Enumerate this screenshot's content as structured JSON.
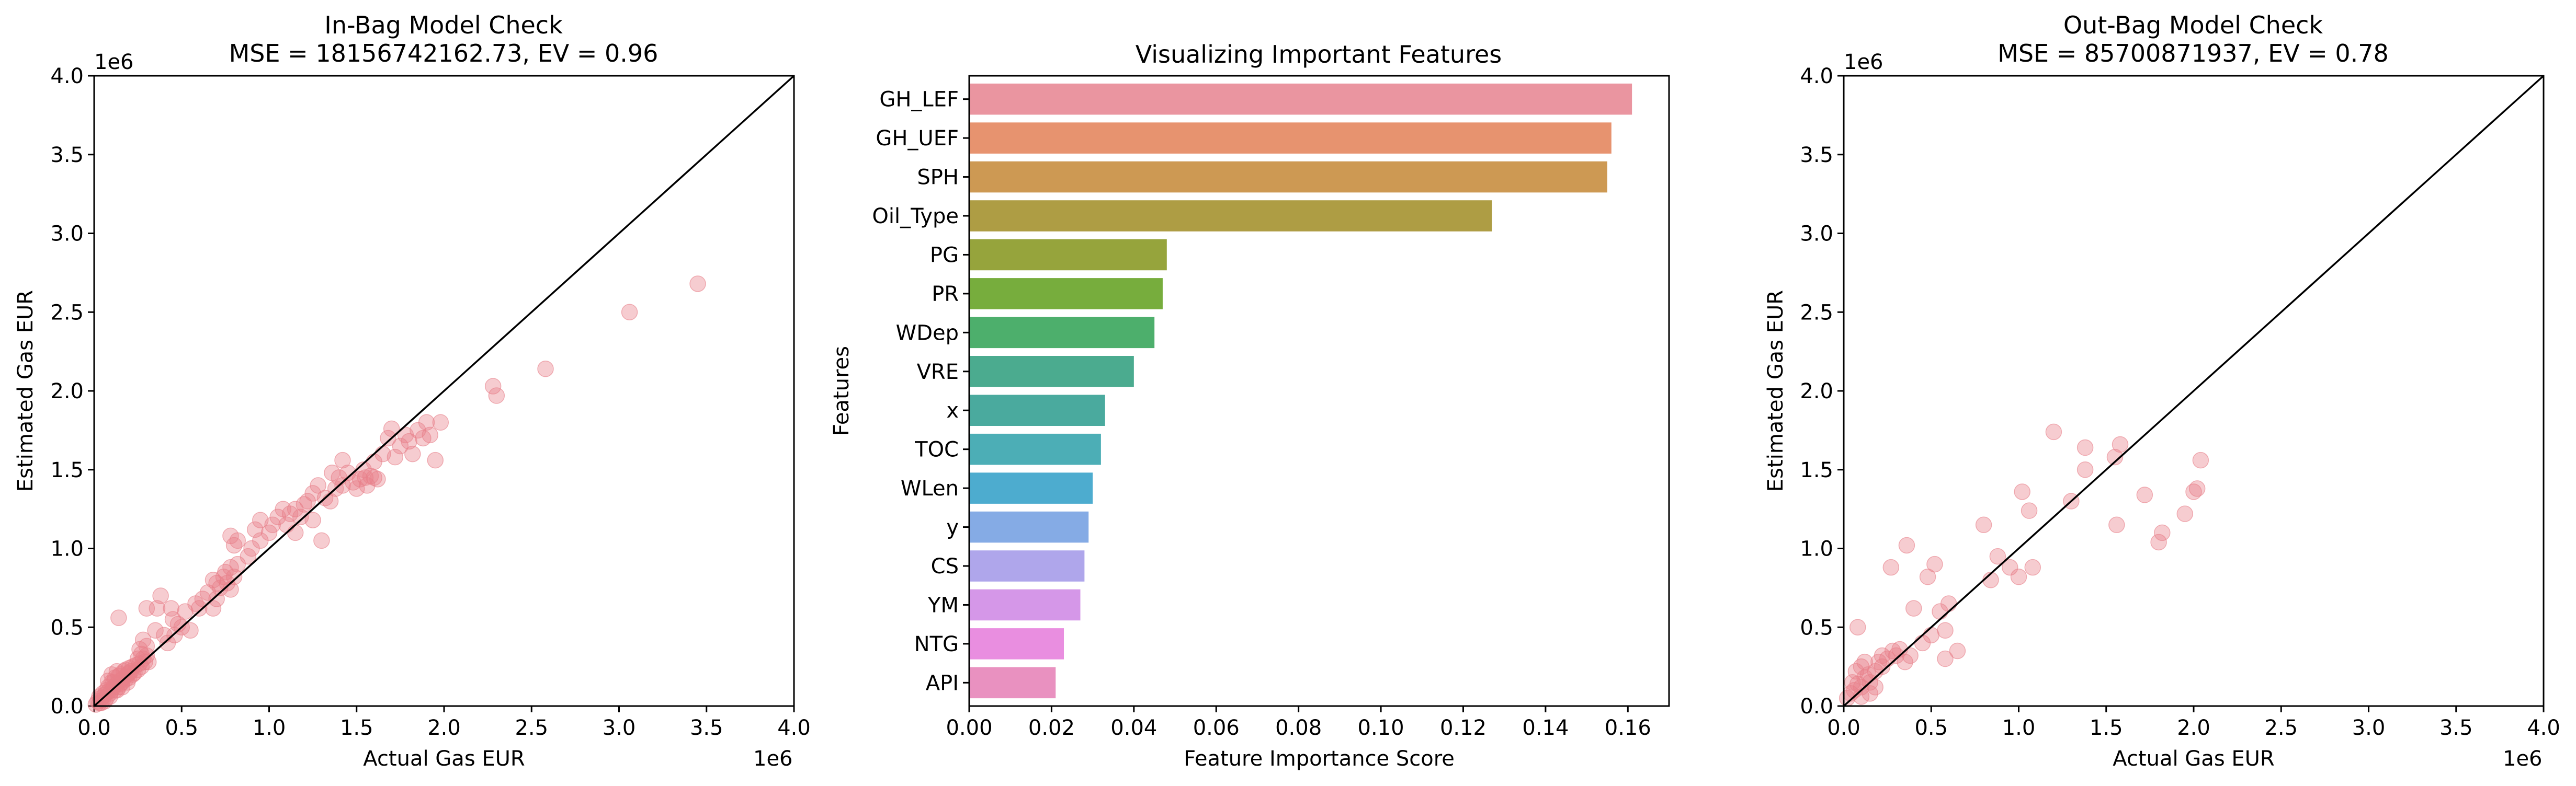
{
  "chart_data": [
    {
      "type": "scatter",
      "title_line1": "In-Bag Model Check",
      "title_line2": "MSE = 18156742162.73, EV = 0.96",
      "xlabel": "Actual Gas EUR",
      "ylabel": "Estimated Gas EUR",
      "x_offset_label": "1e6",
      "y_offset_label": "1e6",
      "xlim": [
        0,
        4.0
      ],
      "ylim": [
        0,
        4.0
      ],
      "x_ticks": [
        "0.0",
        "0.5",
        "1.0",
        "1.5",
        "2.0",
        "2.5",
        "3.0",
        "3.5",
        "4.0"
      ],
      "y_ticks": [
        "0.0",
        "0.5",
        "1.0",
        "1.5",
        "2.0",
        "2.5",
        "3.0",
        "3.5",
        "4.0"
      ],
      "reference_line": "y = x",
      "point_color": "#e8808a",
      "points": [
        [
          0.01,
          0.01
        ],
        [
          0.02,
          0.03
        ],
        [
          0.03,
          0.02
        ],
        [
          0.04,
          0.05
        ],
        [
          0.05,
          0.04
        ],
        [
          0.06,
          0.07
        ],
        [
          0.07,
          0.05
        ],
        [
          0.08,
          0.09
        ],
        [
          0.09,
          0.08
        ],
        [
          0.1,
          0.1
        ],
        [
          0.11,
          0.12
        ],
        [
          0.12,
          0.1
        ],
        [
          0.13,
          0.14
        ],
        [
          0.14,
          0.12
        ],
        [
          0.15,
          0.16
        ],
        [
          0.16,
          0.15
        ],
        [
          0.17,
          0.18
        ],
        [
          0.18,
          0.17
        ],
        [
          0.19,
          0.2
        ],
        [
          0.2,
          0.18
        ],
        [
          0.21,
          0.22
        ],
        [
          0.22,
          0.2
        ],
        [
          0.05,
          0.08
        ],
        [
          0.08,
          0.12
        ],
        [
          0.1,
          0.15
        ],
        [
          0.12,
          0.18
        ],
        [
          0.15,
          0.2
        ],
        [
          0.18,
          0.23
        ],
        [
          0.2,
          0.24
        ],
        [
          0.04,
          0.02
        ],
        [
          0.06,
          0.03
        ],
        [
          0.09,
          0.06
        ],
        [
          0.13,
          0.1
        ],
        [
          0.16,
          0.12
        ],
        [
          0.19,
          0.15
        ],
        [
          0.03,
          0.06
        ],
        [
          0.07,
          0.1
        ],
        [
          0.11,
          0.15
        ],
        [
          0.14,
          0.19
        ],
        [
          0.17,
          0.22
        ],
        [
          0.25,
          0.23
        ],
        [
          0.26,
          0.27
        ],
        [
          0.27,
          0.25
        ],
        [
          0.28,
          0.3
        ],
        [
          0.29,
          0.28
        ],
        [
          0.3,
          0.32
        ],
        [
          0.25,
          0.3
        ],
        [
          0.27,
          0.33
        ],
        [
          0.3,
          0.38
        ],
        [
          0.28,
          0.42
        ],
        [
          0.26,
          0.36
        ],
        [
          0.31,
          0.28
        ],
        [
          0.24,
          0.26
        ],
        [
          0.23,
          0.21
        ],
        [
          0.22,
          0.25
        ],
        [
          0.1,
          0.2
        ],
        [
          0.13,
          0.22
        ],
        [
          0.08,
          0.16
        ],
        [
          0.15,
          0.14
        ],
        [
          0.2,
          0.21
        ],
        [
          0.14,
          0.56
        ],
        [
          0.3,
          0.62
        ],
        [
          0.38,
          0.7
        ],
        [
          0.36,
          0.62
        ],
        [
          0.4,
          0.45
        ],
        [
          0.35,
          0.48
        ],
        [
          0.42,
          0.4
        ],
        [
          0.45,
          0.55
        ],
        [
          0.48,
          0.52
        ],
        [
          0.46,
          0.45
        ],
        [
          0.5,
          0.5
        ],
        [
          0.52,
          0.6
        ],
        [
          0.55,
          0.48
        ],
        [
          0.58,
          0.65
        ],
        [
          0.6,
          0.62
        ],
        [
          0.62,
          0.68
        ],
        [
          0.65,
          0.72
        ],
        [
          0.68,
          0.8
        ],
        [
          0.7,
          0.78
        ],
        [
          0.72,
          0.75
        ],
        [
          0.75,
          0.85
        ],
        [
          0.78,
          0.88
        ],
        [
          0.8,
          0.82
        ],
        [
          0.82,
          0.9
        ],
        [
          0.68,
          0.62
        ],
        [
          0.7,
          0.68
        ],
        [
          0.74,
          0.82
        ],
        [
          0.76,
          0.78
        ],
        [
          0.78,
          0.74
        ],
        [
          0.44,
          0.62
        ],
        [
          0.8,
          1.02
        ],
        [
          0.82,
          1.05
        ],
        [
          0.78,
          1.08
        ],
        [
          0.9,
          1.0
        ],
        [
          0.92,
          1.12
        ],
        [
          0.95,
          1.18
        ],
        [
          1.0,
          1.1
        ],
        [
          1.02,
          1.15
        ],
        [
          1.05,
          1.2
        ],
        [
          1.1,
          1.15
        ],
        [
          1.12,
          1.22
        ],
        [
          1.15,
          1.25
        ],
        [
          1.18,
          1.2
        ],
        [
          1.2,
          1.28
        ],
        [
          1.22,
          1.3
        ],
        [
          1.25,
          1.35
        ],
        [
          1.28,
          1.4
        ],
        [
          1.3,
          1.05
        ],
        [
          1.32,
          1.32
        ],
        [
          1.35,
          1.3
        ],
        [
          1.38,
          1.38
        ],
        [
          1.4,
          1.45
        ],
        [
          1.42,
          1.4
        ],
        [
          1.45,
          1.48
        ],
        [
          1.48,
          1.42
        ],
        [
          1.5,
          1.38
        ],
        [
          1.52,
          1.44
        ],
        [
          1.55,
          1.45
        ],
        [
          1.58,
          1.46
        ],
        [
          1.6,
          1.45
        ],
        [
          1.62,
          1.44
        ],
        [
          1.56,
          1.4
        ],
        [
          1.54,
          1.5
        ],
        [
          1.6,
          1.55
        ],
        [
          1.65,
          1.6
        ],
        [
          1.68,
          1.7
        ],
        [
          1.7,
          1.76
        ],
        [
          1.72,
          1.58
        ],
        [
          1.75,
          1.65
        ],
        [
          1.78,
          1.72
        ],
        [
          1.8,
          1.68
        ],
        [
          1.82,
          1.6
        ],
        [
          1.85,
          1.75
        ],
        [
          1.88,
          1.7
        ],
        [
          1.9,
          1.8
        ],
        [
          1.92,
          1.72
        ],
        [
          1.95,
          1.56
        ],
        [
          1.98,
          1.8
        ],
        [
          1.42,
          1.56
        ],
        [
          1.36,
          1.48
        ],
        [
          2.28,
          2.03
        ],
        [
          2.3,
          1.97
        ],
        [
          2.58,
          2.14
        ],
        [
          3.06,
          2.5
        ],
        [
          3.45,
          2.68
        ],
        [
          1.25,
          1.18
        ],
        [
          1.08,
          1.25
        ],
        [
          1.15,
          1.1
        ],
        [
          0.95,
          1.05
        ],
        [
          0.88,
          0.95
        ]
      ]
    },
    {
      "type": "bar",
      "orientation": "horizontal",
      "title": "Visualizing Important Features",
      "xlabel": "Feature Importance Score",
      "ylabel": "Features",
      "xlim": [
        0,
        0.17
      ],
      "x_ticks": [
        "0.00",
        "0.02",
        "0.04",
        "0.06",
        "0.08",
        "0.10",
        "0.12",
        "0.14",
        "0.16"
      ],
      "categories": [
        "GH_LEF",
        "GH_UEF",
        "SPH",
        "Oil_Type",
        "PG",
        "PR",
        "WDep",
        "VRE",
        "x",
        "TOC",
        "WLen",
        "y",
        "CS",
        "YM",
        "NTG",
        "API"
      ],
      "values": [
        0.161,
        0.156,
        0.155,
        0.127,
        0.048,
        0.047,
        0.045,
        0.04,
        0.033,
        0.032,
        0.03,
        0.029,
        0.028,
        0.027,
        0.023,
        0.021
      ],
      "colors": [
        "#ea95a0",
        "#e7936f",
        "#cd9953",
        "#ae9d44",
        "#96a43c",
        "#77ad3d",
        "#4daf6c",
        "#4bab8f",
        "#4aaa9e",
        "#4caeb6",
        "#4daccf",
        "#85abe5",
        "#afa6eb",
        "#d597e8",
        "#e98ee0",
        "#e991c0"
      ]
    },
    {
      "type": "scatter",
      "title_line1": "Out-Bag Model Check",
      "title_line2": "MSE = 85700871937, EV = 0.78",
      "xlabel": "Actual Gas EUR",
      "ylabel": "Estimated Gas EUR",
      "x_offset_label": "1e6",
      "y_offset_label": "1e6",
      "xlim": [
        0,
        4.0
      ],
      "ylim": [
        0,
        4.0
      ],
      "x_ticks": [
        "0.0",
        "0.5",
        "1.0",
        "1.5",
        "2.0",
        "2.5",
        "3.0",
        "3.5",
        "4.0"
      ],
      "y_ticks": [
        "0.0",
        "0.5",
        "1.0",
        "1.5",
        "2.0",
        "2.5",
        "3.0",
        "3.5",
        "4.0"
      ],
      "reference_line": "y = x",
      "point_color": "#e8808a",
      "points": [
        [
          0.02,
          0.05
        ],
        [
          0.04,
          0.08
        ],
        [
          0.06,
          0.1
        ],
        [
          0.08,
          0.14
        ],
        [
          0.1,
          0.12
        ],
        [
          0.12,
          0.18
        ],
        [
          0.14,
          0.2
        ],
        [
          0.07,
          0.22
        ],
        [
          0.1,
          0.25
        ],
        [
          0.15,
          0.15
        ],
        [
          0.18,
          0.22
        ],
        [
          0.2,
          0.28
        ],
        [
          0.22,
          0.25
        ],
        [
          0.25,
          0.3
        ],
        [
          0.28,
          0.35
        ],
        [
          0.3,
          0.32
        ],
        [
          0.32,
          0.36
        ],
        [
          0.35,
          0.28
        ],
        [
          0.38,
          0.32
        ],
        [
          0.12,
          0.28
        ],
        [
          0.08,
          0.5
        ],
        [
          0.27,
          0.88
        ],
        [
          0.36,
          1.02
        ],
        [
          0.48,
          0.82
        ],
        [
          0.52,
          0.9
        ],
        [
          0.5,
          0.45
        ],
        [
          0.58,
          0.48
        ],
        [
          0.55,
          0.6
        ],
        [
          0.6,
          0.65
        ],
        [
          0.58,
          0.3
        ],
        [
          0.65,
          0.35
        ],
        [
          0.8,
          1.15
        ],
        [
          0.84,
          0.8
        ],
        [
          0.88,
          0.95
        ],
        [
          0.95,
          0.88
        ],
        [
          1.0,
          0.82
        ],
        [
          1.02,
          1.36
        ],
        [
          1.06,
          1.24
        ],
        [
          1.08,
          0.88
        ],
        [
          1.2,
          1.74
        ],
        [
          1.3,
          1.3
        ],
        [
          1.38,
          1.5
        ],
        [
          1.38,
          1.64
        ],
        [
          1.55,
          1.58
        ],
        [
          1.58,
          1.66
        ],
        [
          1.56,
          1.15
        ],
        [
          1.72,
          1.34
        ],
        [
          1.8,
          1.04
        ],
        [
          1.82,
          1.1
        ],
        [
          1.95,
          1.22
        ],
        [
          2.0,
          1.36
        ],
        [
          2.02,
          1.38
        ],
        [
          2.04,
          1.56
        ],
        [
          0.4,
          0.62
        ],
        [
          0.45,
          0.4
        ],
        [
          0.05,
          0.15
        ],
        [
          0.18,
          0.12
        ],
        [
          0.15,
          0.08
        ],
        [
          0.1,
          0.06
        ],
        [
          0.22,
          0.32
        ]
      ]
    }
  ]
}
